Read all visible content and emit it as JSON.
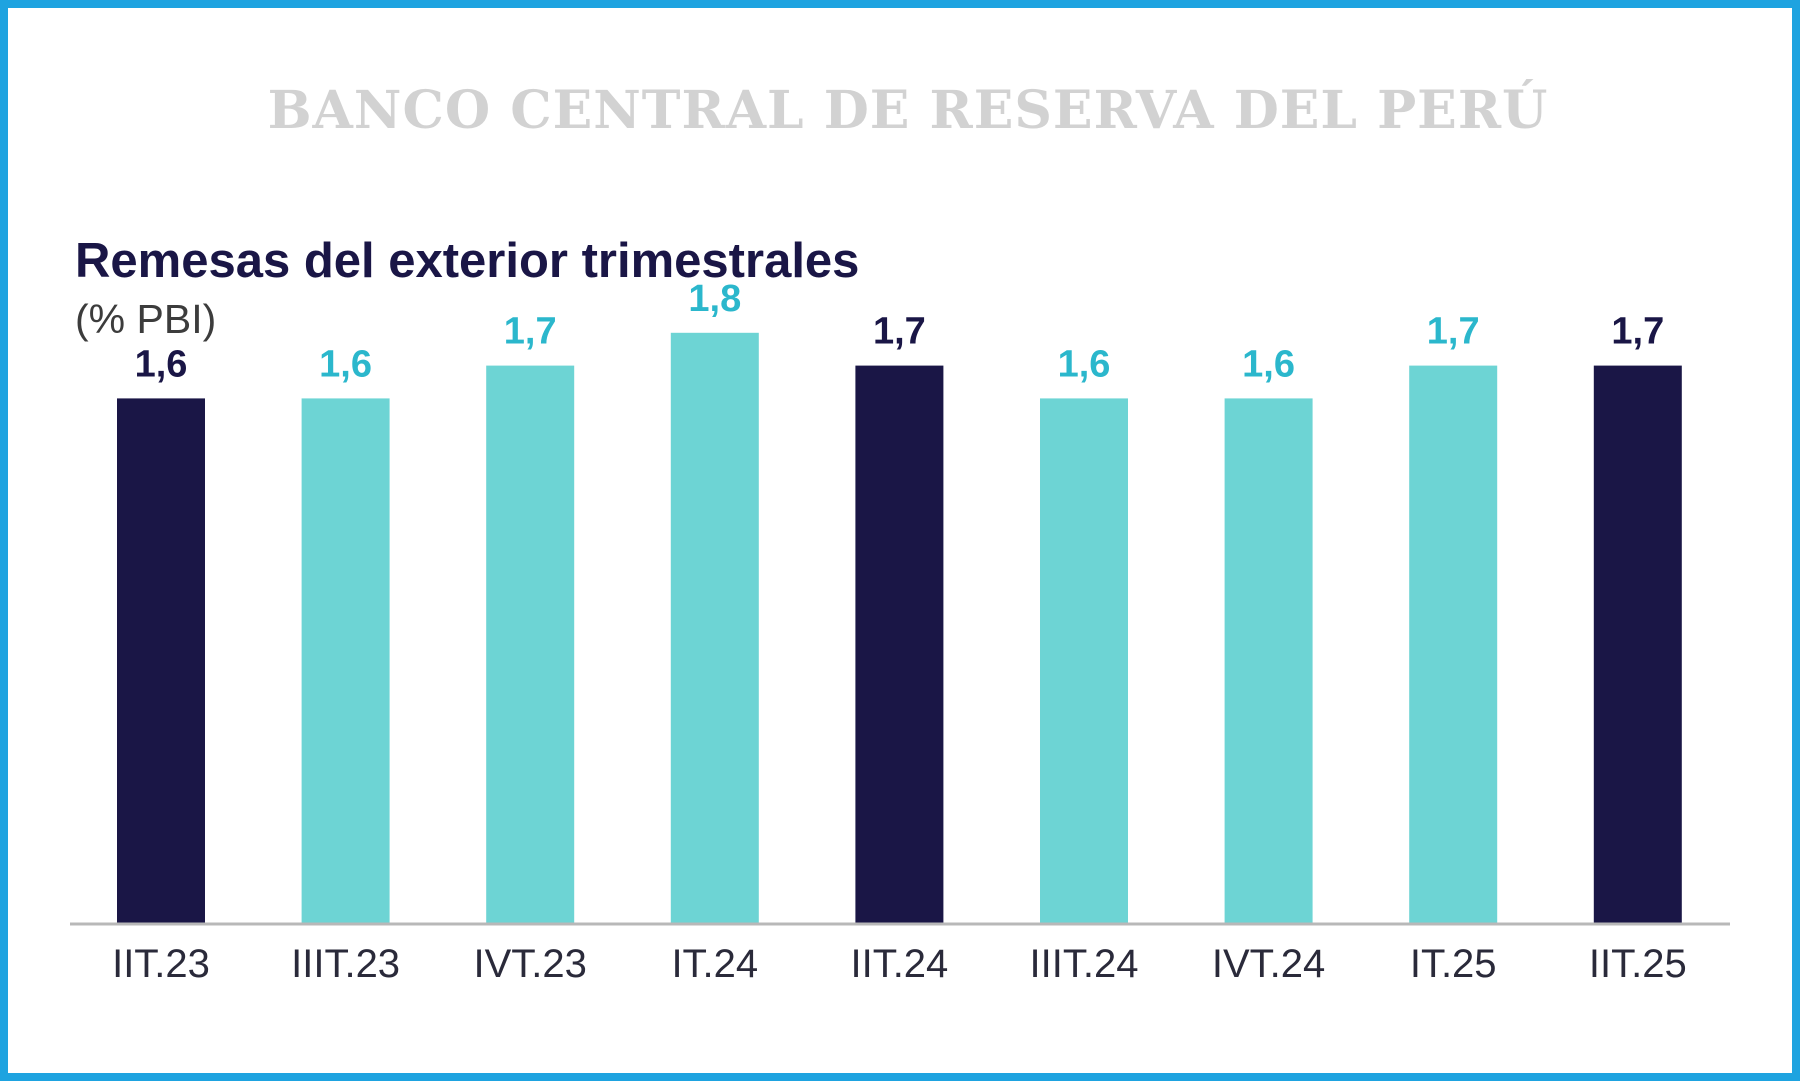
{
  "header": {
    "org_name": "BANCO CENTRAL DE RESERVA DEL PERÚ"
  },
  "colors": {
    "frame_border": "#1ea3e0",
    "dark_bar": "#1a1646",
    "light_bar": "#6dd4d4",
    "light_label": "#2bb7cc",
    "axis": "#b8b8b8"
  },
  "chart_data": {
    "type": "bar",
    "title": "Remesas del exterior trimestrales",
    "subtitle": "(% PBI)",
    "xlabel": "",
    "ylabel": "",
    "ylim": [
      0,
      1.9
    ],
    "grid": false,
    "legend": "none",
    "categories": [
      "IIT.23",
      "IIIT.23",
      "IVT.23",
      "IT.24",
      "IIT.24",
      "IIIT.24",
      "IVT.24",
      "IT.25",
      "IIT.25"
    ],
    "values": [
      1.6,
      1.6,
      1.7,
      1.8,
      1.7,
      1.6,
      1.6,
      1.7,
      1.7
    ],
    "value_labels": [
      "1,6",
      "1,6",
      "1,7",
      "1,8",
      "1,7",
      "1,6",
      "1,6",
      "1,7",
      "1,7"
    ],
    "bar_colors": [
      "dark",
      "light",
      "light",
      "light",
      "dark",
      "light",
      "light",
      "light",
      "dark"
    ]
  }
}
